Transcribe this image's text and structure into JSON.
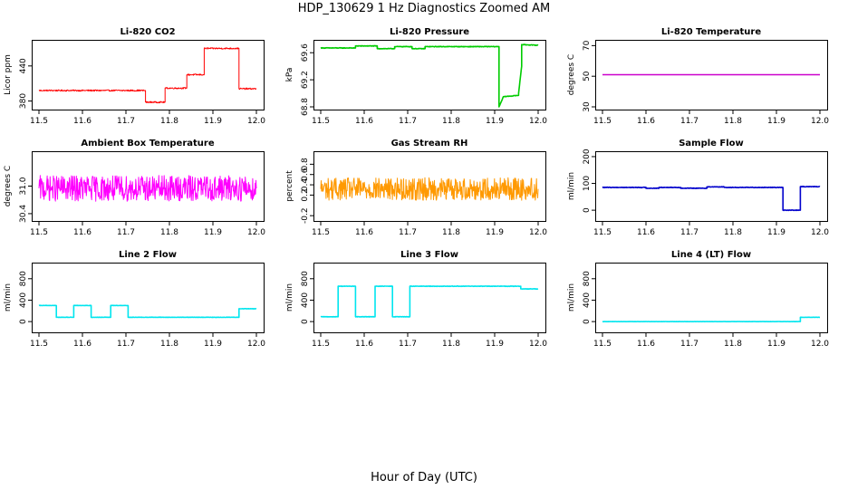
{
  "figure": {
    "title": "HDP_130629  1 Hz Diagnostics Zoomed AM",
    "xlabel": "Hour of Day (UTC)"
  },
  "chart_data": [
    {
      "type": "line",
      "title": "Li-820 CO2",
      "ylabel": "Licor ppm",
      "color": "#ff0000",
      "xlim": [
        11.5,
        12.0
      ],
      "ylim": [
        370,
        480
      ],
      "xticks": [
        11.5,
        11.6,
        11.7,
        11.8,
        11.9,
        12.0
      ],
      "xtick_labels": [
        "11.5",
        "11.6",
        "11.7",
        "11.8",
        "11.9",
        "12.0"
      ],
      "yticks": [
        380,
        440
      ],
      "ytick_labels": [
        "380",
        "440"
      ],
      "noise": 1.2,
      "series": [
        {
          "name": "CO2",
          "x": [
            11.5,
            11.745,
            11.745,
            11.79,
            11.79,
            11.84,
            11.84,
            11.88,
            11.88,
            11.96,
            11.96,
            12.0
          ],
          "y": [
            398,
            398,
            378,
            378,
            402,
            402,
            425,
            425,
            470,
            470,
            401,
            401
          ]
        }
      ]
    },
    {
      "type": "line",
      "title": "Li-820 Pressure",
      "ylabel": "kPa",
      "color": "#00cc00",
      "xlim": [
        11.5,
        12.0
      ],
      "ylim": [
        68.8,
        69.75
      ],
      "xticks": [
        11.5,
        11.6,
        11.7,
        11.8,
        11.9,
        12.0
      ],
      "xtick_labels": [
        "11.5",
        "11.6",
        "11.7",
        "11.8",
        "11.9",
        "12.0"
      ],
      "yticks": [
        68.8,
        69.2,
        69.6
      ],
      "ytick_labels": [
        "68.8",
        "69.2",
        "69.6"
      ],
      "noise": 0.004,
      "series": [
        {
          "name": "Pressure",
          "x": [
            11.5,
            11.58,
            11.58,
            11.63,
            11.63,
            11.67,
            11.67,
            11.71,
            11.71,
            11.74,
            11.74,
            11.91,
            11.91,
            11.92,
            11.92,
            11.955,
            11.955,
            11.962,
            11.962,
            12.0
          ],
          "y": [
            69.67,
            69.67,
            69.7,
            69.7,
            69.66,
            69.66,
            69.69,
            69.69,
            69.66,
            69.66,
            69.69,
            69.69,
            68.8,
            68.95,
            68.95,
            68.97,
            69.0,
            69.4,
            69.72,
            69.71
          ]
        }
      ]
    },
    {
      "type": "line",
      "title": "Li-820 Temperature",
      "ylabel": "degrees C",
      "color": "#cc00cc",
      "xlim": [
        11.5,
        12.0
      ],
      "ylim": [
        30,
        72
      ],
      "xticks": [
        11.5,
        11.6,
        11.7,
        11.8,
        11.9,
        12.0
      ],
      "xtick_labels": [
        "11.5",
        "11.6",
        "11.7",
        "11.8",
        "11.9",
        "12.0"
      ],
      "yticks": [
        30,
        50,
        70
      ],
      "ytick_labels": [
        "30",
        "50",
        "70"
      ],
      "noise": 0,
      "series": [
        {
          "name": "Temperature",
          "x": [
            11.5,
            12.0
          ],
          "y": [
            51,
            51
          ]
        }
      ]
    },
    {
      "type": "line",
      "title": "Ambient Box Temperature",
      "ylabel": "degrees C",
      "color": "#ff00ff",
      "xlim": [
        11.5,
        12.0
      ],
      "ylim": [
        30.3,
        31.7
      ],
      "xticks": [
        11.5,
        11.6,
        11.7,
        11.8,
        11.9,
        12.0
      ],
      "xtick_labels": [
        "11.5",
        "11.6",
        "11.7",
        "11.8",
        "11.9",
        "12.0"
      ],
      "yticks": [
        30.4,
        31.0
      ],
      "ytick_labels": [
        "30.4",
        "31.0"
      ],
      "noise": 0.28,
      "series": [
        {
          "name": "Box Temp",
          "x": [
            11.5,
            12.0
          ],
          "y": [
            30.95,
            30.95
          ]
        }
      ]
    },
    {
      "type": "line",
      "title": "Gas Stream RH",
      "ylabel": "percent",
      "color": "#ff9900",
      "xlim": [
        11.5,
        12.0
      ],
      "ylim": [
        -0.25,
        1.0
      ],
      "xticks": [
        11.5,
        11.6,
        11.7,
        11.8,
        11.9,
        12.0
      ],
      "xtick_labels": [
        "11.5",
        "11.6",
        "11.7",
        "11.8",
        "11.9",
        "12.0"
      ],
      "yticks": [
        -0.2,
        0.2,
        0.4,
        0.6,
        0.8
      ],
      "ytick_labels": [
        "-0.2",
        "0.2",
        "0.4",
        "0.6",
        "0.8"
      ],
      "noise": 0.22,
      "series": [
        {
          "name": "RH",
          "x": [
            11.5,
            12.0
          ],
          "y": [
            0.32,
            0.32
          ]
        }
      ]
    },
    {
      "type": "line",
      "title": "Sample Flow",
      "ylabel": "ml/min",
      "color": "#0000cc",
      "xlim": [
        11.5,
        12.0
      ],
      "ylim": [
        -30,
        210
      ],
      "xticks": [
        11.5,
        11.6,
        11.7,
        11.8,
        11.9,
        12.0
      ],
      "xtick_labels": [
        "11.5",
        "11.6",
        "11.7",
        "11.8",
        "11.9",
        "12.0"
      ],
      "yticks": [
        0,
        100,
        200
      ],
      "ytick_labels": [
        "0",
        "100",
        "200"
      ],
      "noise": 1.0,
      "series": [
        {
          "name": "Sample",
          "x": [
            11.5,
            11.6,
            11.6,
            11.63,
            11.63,
            11.68,
            11.68,
            11.74,
            11.74,
            11.78,
            11.78,
            11.915,
            11.915,
            11.955,
            11.955,
            12.0
          ],
          "y": [
            85,
            85,
            82,
            82,
            85,
            85,
            82,
            82,
            87,
            87,
            85,
            85,
            0,
            0,
            88,
            88
          ]
        }
      ]
    },
    {
      "type": "line",
      "title": "Line 2 Flow",
      "ylabel": "ml/min",
      "color": "#00e5ee",
      "xlim": [
        11.5,
        12.0
      ],
      "ylim": [
        -150,
        1050
      ],
      "xticks": [
        11.5,
        11.6,
        11.7,
        11.8,
        11.9,
        12.0
      ],
      "xtick_labels": [
        "11.5",
        "11.6",
        "11.7",
        "11.8",
        "11.9",
        "12.0"
      ],
      "yticks": [
        0,
        400,
        800
      ],
      "ytick_labels": [
        "0",
        "400",
        "800"
      ],
      "noise": 3,
      "series": [
        {
          "name": "Line 2",
          "x": [
            11.5,
            11.54,
            11.54,
            11.58,
            11.58,
            11.62,
            11.62,
            11.665,
            11.665,
            11.705,
            11.705,
            11.96,
            11.96,
            12.0
          ],
          "y": [
            300,
            300,
            80,
            80,
            300,
            300,
            80,
            80,
            300,
            300,
            80,
            80,
            240,
            240
          ]
        }
      ]
    },
    {
      "type": "line",
      "title": "Line 3 Flow",
      "ylabel": "ml/min",
      "color": "#00e5ee",
      "xlim": [
        11.5,
        12.0
      ],
      "ylim": [
        -150,
        1050
      ],
      "xticks": [
        11.5,
        11.6,
        11.7,
        11.8,
        11.9,
        12.0
      ],
      "xtick_labels": [
        "11.5",
        "11.6",
        "11.7",
        "11.8",
        "11.9",
        "12.0"
      ],
      "yticks": [
        0,
        400,
        800
      ],
      "ytick_labels": [
        "0",
        "400",
        "800"
      ],
      "noise": 4,
      "series": [
        {
          "name": "Line 3",
          "x": [
            11.5,
            11.54,
            11.54,
            11.58,
            11.58,
            11.625,
            11.625,
            11.665,
            11.665,
            11.705,
            11.705,
            11.96,
            11.96,
            12.0
          ],
          "y": [
            90,
            90,
            660,
            660,
            90,
            90,
            660,
            660,
            90,
            90,
            660,
            660,
            610,
            610
          ]
        }
      ]
    },
    {
      "type": "line",
      "title": "Line 4 (LT) Flow",
      "ylabel": "ml/min",
      "color": "#00e5ee",
      "xlim": [
        11.5,
        12.0
      ],
      "ylim": [
        -150,
        1050
      ],
      "xticks": [
        11.5,
        11.6,
        11.7,
        11.8,
        11.9,
        12.0
      ],
      "xtick_labels": [
        "11.5",
        "11.6",
        "11.7",
        "11.8",
        "11.9",
        "12.0"
      ],
      "yticks": [
        0,
        400,
        800
      ],
      "ytick_labels": [
        "0",
        "400",
        "800"
      ],
      "noise": 2,
      "series": [
        {
          "name": "Line 4",
          "x": [
            11.5,
            11.955,
            11.955,
            12.0
          ],
          "y": [
            0,
            0,
            80,
            80
          ]
        }
      ]
    }
  ]
}
